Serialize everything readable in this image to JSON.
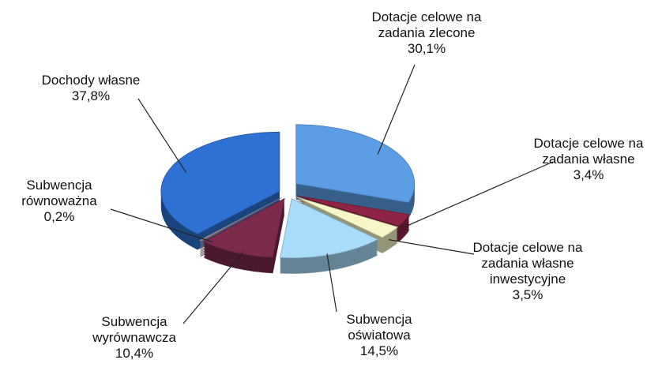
{
  "chart_data": {
    "type": "pie",
    "categories": [
      "Dotacje celowe na zadania zlecone",
      "Dotacje celowe na zadania własne",
      "Dotacje celowe na zadania własne inwestycyjne",
      "Subwencja oświatowa",
      "Subwencja wyrównawcza",
      "Subwencja równoważna",
      "Dochody własne"
    ],
    "values": [
      30.1,
      3.4,
      3.5,
      14.5,
      10.4,
      0.2,
      37.8
    ],
    "value_labels": [
      "30,1%",
      "3,4%",
      "3,5%",
      "14,5%",
      "10,4%",
      "0,2%",
      "37,8%"
    ],
    "colors": [
      "#5c9ee6",
      "#8e2346",
      "#f6f6c6",
      "#a9dcfa",
      "#7c2a4c",
      "#c8a0b0",
      "#2d72d2"
    ]
  }
}
